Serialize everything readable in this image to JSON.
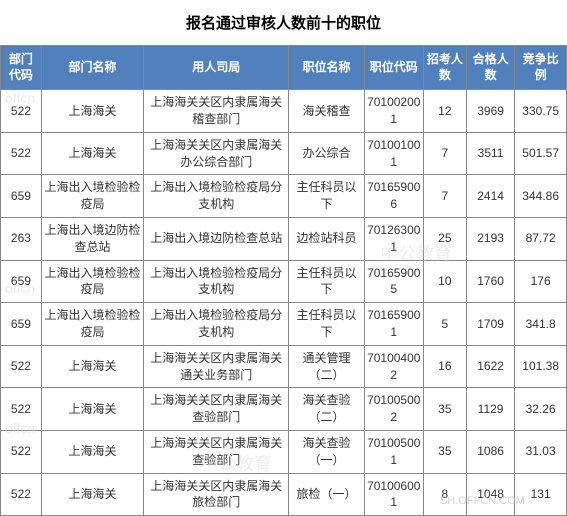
{
  "title": "报名通过审核人数前十的职位",
  "headers": {
    "dept_code": "部门代码",
    "dept_name": "部门名称",
    "employer": "用人司局",
    "position_name": "职位名称",
    "position_code": "职位代码",
    "recruit_count": "招考人数",
    "pass_count": "合格人数",
    "ratio": "竞争比例"
  },
  "rows": [
    {
      "dept_code": "522",
      "dept_name": "上海海关",
      "employer": "上海海关关区内隶属海关稽查部门",
      "position_name": "海关稽查",
      "position_code": "701002001",
      "recruit": "12",
      "pass": "3969",
      "ratio": "330.75"
    },
    {
      "dept_code": "522",
      "dept_name": "上海海关",
      "employer": "上海海关关区内隶属海关办公综合部门",
      "position_name": "办公综合",
      "position_code": "701001001",
      "recruit": "7",
      "pass": "3511",
      "ratio": "501.57"
    },
    {
      "dept_code": "659",
      "dept_name": "上海出入境检验检疫局",
      "employer": "上海出入境检验检疫局分支机构",
      "position_name": "主任科员以下",
      "position_code": "701659006",
      "recruit": "7",
      "pass": "2414",
      "ratio": "344.86"
    },
    {
      "dept_code": "263",
      "dept_name": "上海出入境边防检查总站",
      "employer": "上海出入境边防检查总站",
      "position_name": "边检站科员",
      "position_code": "701263001",
      "recruit": "25",
      "pass": "2193",
      "ratio": "87.72"
    },
    {
      "dept_code": "659",
      "dept_name": "上海出入境检验检疫局",
      "employer": "上海出入境检验检疫局分支机构",
      "position_name": "主任科员以下",
      "position_code": "701659005",
      "recruit": "10",
      "pass": "1760",
      "ratio": "176"
    },
    {
      "dept_code": "659",
      "dept_name": "上海出入境检验检疫局",
      "employer": "上海出入境检验检疫局分支机构",
      "position_name": "主任科员以下",
      "position_code": "701659001",
      "recruit": "5",
      "pass": "1709",
      "ratio": "341.8"
    },
    {
      "dept_code": "522",
      "dept_name": "上海海关",
      "employer": "上海海关关区内隶属海关通关业务部门",
      "position_name": "通关管理（二）",
      "position_code": "701004002",
      "recruit": "16",
      "pass": "1622",
      "ratio": "101.38"
    },
    {
      "dept_code": "522",
      "dept_name": "上海海关",
      "employer": "上海海关关区内隶属海关查验部门",
      "position_name": "海关查验（二）",
      "position_code": "701005002",
      "recruit": "35",
      "pass": "1129",
      "ratio": "32.26"
    },
    {
      "dept_code": "522",
      "dept_name": "上海海关",
      "employer": "上海海关关区内隶属海关查验部门",
      "position_name": "海关查验（一）",
      "position_code": "701005001",
      "recruit": "35",
      "pass": "1086",
      "ratio": "31.03"
    },
    {
      "dept_code": "522",
      "dept_name": "上海海关",
      "employer": "上海海关关区内隶属海关旅检部门",
      "position_name": "旅检（一）",
      "position_code": "701006001",
      "recruit": "8",
      "pass": "1048",
      "ratio": "131"
    }
  ],
  "watermark": {
    "offcn": "offcn",
    "zhonggong": "中公教育",
    "url": "SH.OFFCN.COM"
  },
  "styles": {
    "header_bg": "#5181bd",
    "header_color": "#ffffff",
    "border_color": "#888888",
    "text_color": "#333333",
    "font_family": "Microsoft YaHei"
  }
}
